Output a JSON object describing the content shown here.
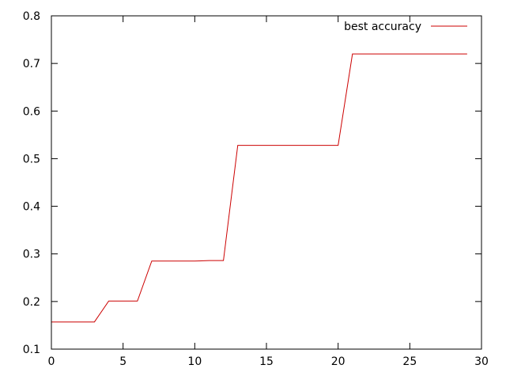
{
  "chart_data": {
    "type": "line",
    "title": "",
    "xlabel": "",
    "ylabel": "",
    "xlim": [
      0,
      30
    ],
    "ylim": [
      0.1,
      0.8
    ],
    "x_ticks": [
      0,
      5,
      10,
      15,
      20,
      25,
      30
    ],
    "y_ticks": [
      0.1,
      0.2,
      0.3,
      0.4,
      0.5,
      0.6,
      0.7,
      0.8
    ],
    "x_tick_labels": [
      "0",
      "5",
      "10",
      "15",
      "20",
      "25",
      "30"
    ],
    "y_tick_labels": [
      "0.1",
      "0.2",
      "0.3",
      "0.4",
      "0.5",
      "0.6",
      "0.7",
      "0.8"
    ],
    "grid": false,
    "legend": {
      "position": "top-right"
    },
    "series": [
      {
        "name": "best accuracy",
        "color": "#cc0000",
        "x": [
          0,
          1,
          2,
          3,
          4,
          5,
          6,
          7,
          8,
          9,
          10,
          11,
          12,
          13,
          14,
          15,
          16,
          17,
          18,
          19,
          20,
          21,
          22,
          23,
          24,
          25,
          26,
          27,
          28,
          29
        ],
        "y": [
          0.157,
          0.157,
          0.157,
          0.157,
          0.201,
          0.201,
          0.201,
          0.285,
          0.285,
          0.285,
          0.285,
          0.286,
          0.286,
          0.528,
          0.528,
          0.528,
          0.528,
          0.528,
          0.528,
          0.528,
          0.528,
          0.72,
          0.72,
          0.72,
          0.72,
          0.72,
          0.72,
          0.72,
          0.72,
          0.72
        ]
      }
    ]
  }
}
